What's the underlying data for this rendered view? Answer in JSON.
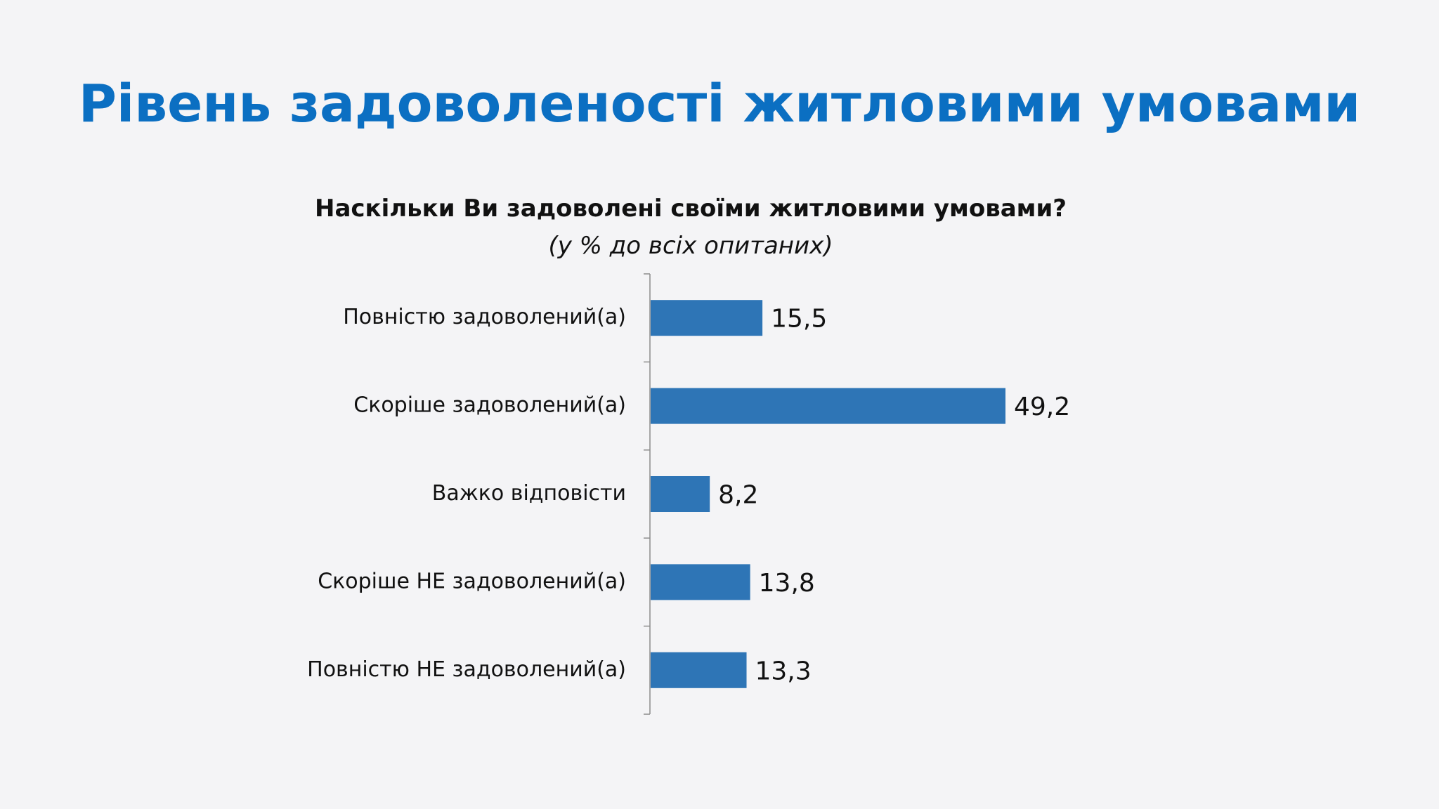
{
  "slide": {
    "title": "Рівень задоволеності житловими умовами"
  },
  "chart_data": {
    "type": "bar",
    "orientation": "horizontal",
    "title": "Наскільки Ви задоволені своїми житловими умовами?",
    "subtitle": "(у % до всіх опитаних)",
    "categories": [
      "Повністю задоволений(а)",
      "Скоріше задоволений(а)",
      "Важко відповісти",
      "Скоріше НЕ задоволений(а)",
      "Повністю НЕ задоволений(а)"
    ],
    "values": [
      15.5,
      49.2,
      8.2,
      13.8,
      13.3
    ],
    "value_labels": [
      "15,5",
      "49,2",
      "8,2",
      "13,8",
      "13,3"
    ],
    "xlim": [
      0,
      60
    ],
    "grid": false,
    "legend": "none",
    "bar_color": "#2e75b6"
  }
}
